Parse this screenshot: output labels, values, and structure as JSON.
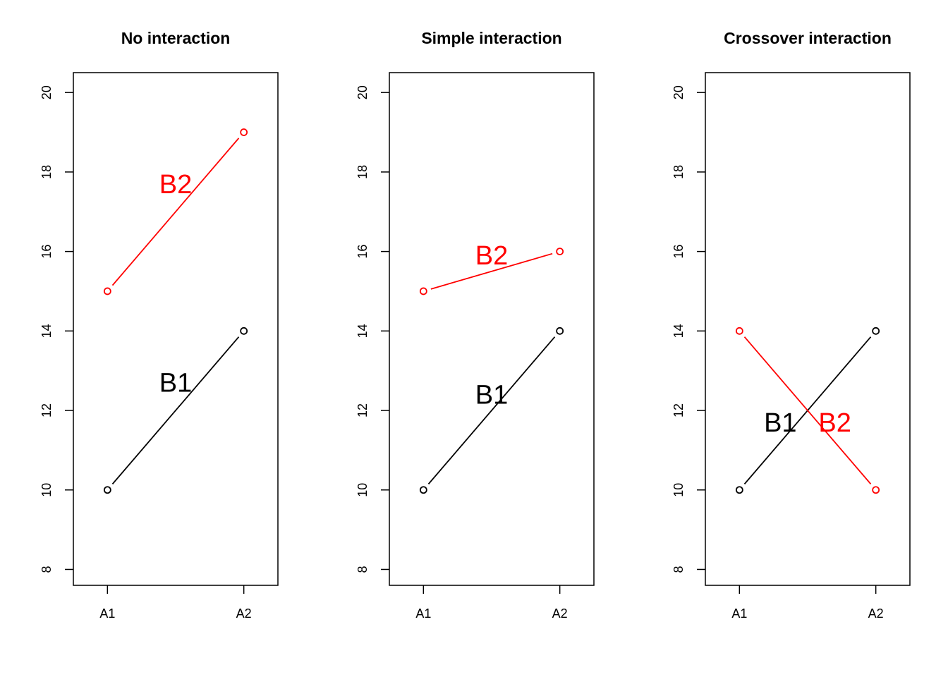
{
  "chart_data": [
    {
      "type": "line",
      "title": "No interaction",
      "categories": [
        "A1",
        "A2"
      ],
      "ylim": [
        7.6,
        20.5
      ],
      "yticks": [
        8,
        10,
        12,
        14,
        16,
        18,
        20
      ],
      "series": [
        {
          "name": "B1",
          "values": [
            10,
            14
          ],
          "color": "#000000",
          "label_at": [
            1.5,
            12.7
          ]
        },
        {
          "name": "B2",
          "values": [
            15,
            19
          ],
          "color": "#ff0000",
          "label_at": [
            1.5,
            17.7
          ]
        }
      ]
    },
    {
      "type": "line",
      "title": "Simple interaction",
      "categories": [
        "A1",
        "A2"
      ],
      "ylim": [
        7.6,
        20.5
      ],
      "yticks": [
        8,
        10,
        12,
        14,
        16,
        18,
        20
      ],
      "series": [
        {
          "name": "B1",
          "values": [
            10,
            14
          ],
          "color": "#000000",
          "label_at": [
            1.5,
            12.4
          ]
        },
        {
          "name": "B2",
          "values": [
            15,
            16
          ],
          "color": "#ff0000",
          "label_at": [
            1.5,
            15.9
          ]
        }
      ]
    },
    {
      "type": "line",
      "title": "Crossover interaction",
      "categories": [
        "A1",
        "A2"
      ],
      "ylim": [
        7.6,
        20.5
      ],
      "yticks": [
        8,
        10,
        12,
        14,
        16,
        18,
        20
      ],
      "series": [
        {
          "name": "B1",
          "values": [
            10,
            14
          ],
          "color": "#000000",
          "label_at": [
            1.3,
            11.7
          ]
        },
        {
          "name": "B2",
          "values": [
            14,
            10
          ],
          "color": "#ff0000",
          "label_at": [
            1.7,
            11.7
          ]
        }
      ]
    }
  ]
}
